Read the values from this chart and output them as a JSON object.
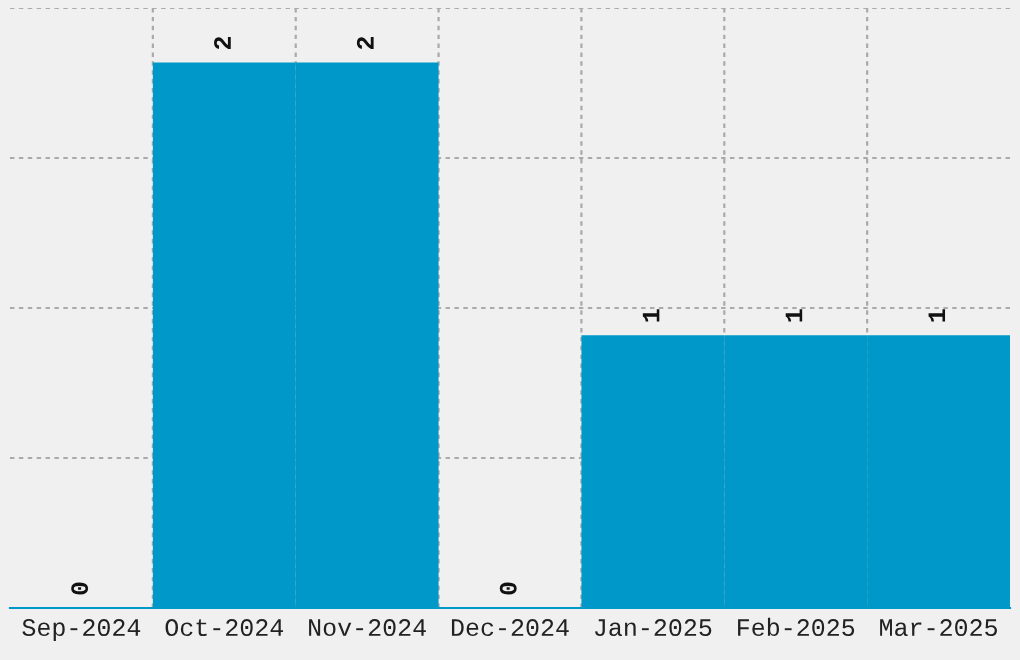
{
  "chart_data": {
    "type": "bar",
    "categories": [
      "Sep-2024",
      "Oct-2024",
      "Nov-2024",
      "Dec-2024",
      "Jan-2025",
      "Feb-2025",
      "Mar-2025"
    ],
    "values": [
      0,
      2,
      2,
      0,
      1,
      1,
      1
    ],
    "color": "#0098c8",
    "data_labels": true,
    "ylim": [
      0,
      2.2
    ],
    "yticks": [
      {
        "value": 0,
        "label": null
      },
      {
        "value": 0.55,
        "label": null
      },
      {
        "value": 1.1,
        "label": null
      },
      {
        "value": 1.65,
        "label": null
      },
      {
        "value": 2.2,
        "label": null
      }
    ],
    "grid": true,
    "tick_labels": "x"
  }
}
